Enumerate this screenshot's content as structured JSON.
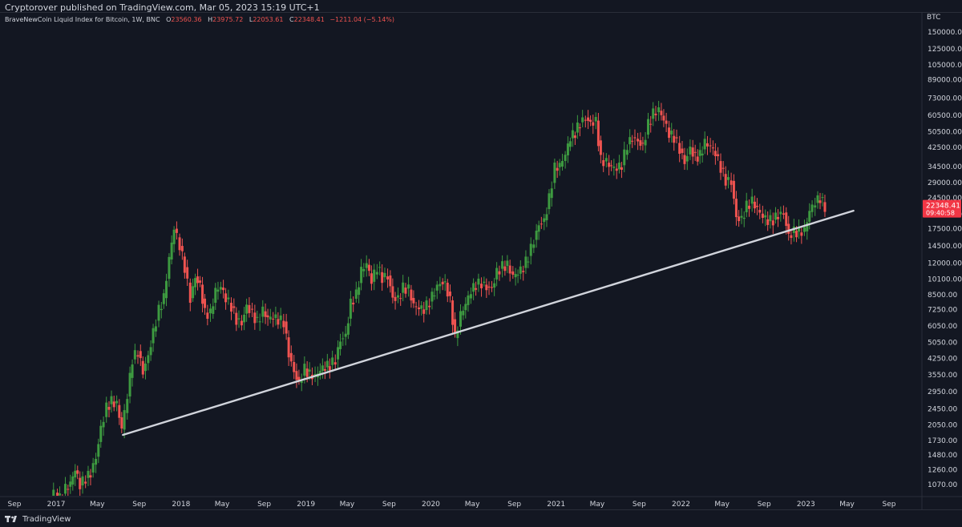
{
  "header": {
    "published": "Cryptorover published on TradingView.com, Mar 05, 2023 15:19 UTC+1"
  },
  "legend": {
    "symbol": "BraveNewCoin Liquid Index for Bitcoin, 1W, BNC",
    "open_label": "O",
    "open": "23560.36",
    "high_label": "H",
    "high": "23975.72",
    "low_label": "L",
    "low": "22053.61",
    "close_label": "C",
    "close": "22348.41",
    "change": "−1211.04 (−5.14%)"
  },
  "price_axis": {
    "currency": "BTC",
    "last_price": "22348.41",
    "countdown": "09:40:58"
  },
  "footer": {
    "brand": "TradingView"
  },
  "colors": {
    "background": "#131722",
    "up": "#26a69a",
    "up_candle": "#3d9a40",
    "down": "#ef5350",
    "trendline": "#d1d4dc",
    "price_tag": "#f23645"
  },
  "chart_data": {
    "type": "candlestick",
    "interval": "1W",
    "scale": "log",
    "ylim": [
      900,
      175000
    ],
    "y_ticks": [
      1070,
      1260,
      1480,
      1730,
      2050,
      2450,
      2950,
      3550,
      4250,
      5050,
      6050,
      7250,
      8500,
      10100,
      12000,
      14500,
      17500,
      20500,
      24500,
      29000,
      34500,
      42500,
      50500,
      60500,
      73000,
      89000,
      105000,
      125000,
      150000
    ],
    "x_ticks": [
      {
        "label": "Sep",
        "date": "2016-09-01"
      },
      {
        "label": "2017",
        "date": "2017-01-01"
      },
      {
        "label": "May",
        "date": "2017-05-01"
      },
      {
        "label": "Sep",
        "date": "2017-09-01"
      },
      {
        "label": "2018",
        "date": "2018-01-01"
      },
      {
        "label": "May",
        "date": "2018-05-01"
      },
      {
        "label": "Sep",
        "date": "2018-09-01"
      },
      {
        "label": "2019",
        "date": "2019-01-01"
      },
      {
        "label": "May",
        "date": "2019-05-01"
      },
      {
        "label": "Sep",
        "date": "2019-09-01"
      },
      {
        "label": "2020",
        "date": "2020-01-01"
      },
      {
        "label": "May",
        "date": "2020-05-01"
      },
      {
        "label": "Sep",
        "date": "2020-09-01"
      },
      {
        "label": "2021",
        "date": "2021-01-01"
      },
      {
        "label": "May",
        "date": "2021-05-01"
      },
      {
        "label": "Sep",
        "date": "2021-09-01"
      },
      {
        "label": "2022",
        "date": "2022-01-01"
      },
      {
        "label": "May",
        "date": "2022-05-01"
      },
      {
        "label": "Sep",
        "date": "2022-09-01"
      },
      {
        "label": "2023",
        "date": "2023-01-01"
      },
      {
        "label": "May",
        "date": "2023-05-01"
      },
      {
        "label": "Sep",
        "date": "2023-09-01"
      }
    ],
    "trendline": {
      "start": {
        "date": "2017-07-15",
        "price": 1840
      },
      "end": {
        "date": "2023-05-20",
        "price": 21300
      }
    },
    "series": [
      {
        "date": "2016-12-01",
        "close": 880
      },
      {
        "date": "2017-01-01",
        "close": 980
      },
      {
        "date": "2017-01-15",
        "close": 920
      },
      {
        "date": "2017-02-01",
        "close": 1020
      },
      {
        "date": "2017-02-15",
        "close": 1070
      },
      {
        "date": "2017-03-01",
        "close": 1250
      },
      {
        "date": "2017-03-15",
        "close": 1060
      },
      {
        "date": "2017-04-01",
        "close": 1150
      },
      {
        "date": "2017-04-15",
        "close": 1220
      },
      {
        "date": "2017-05-01",
        "close": 1450
      },
      {
        "date": "2017-05-15",
        "close": 2000
      },
      {
        "date": "2017-06-01",
        "close": 2500
      },
      {
        "date": "2017-06-15",
        "close": 2650
      },
      {
        "date": "2017-07-01",
        "close": 2550
      },
      {
        "date": "2017-07-15",
        "close": 1950
      },
      {
        "date": "2017-08-01",
        "close": 2800
      },
      {
        "date": "2017-08-15",
        "close": 4200
      },
      {
        "date": "2017-09-01",
        "close": 4600
      },
      {
        "date": "2017-09-15",
        "close": 3700
      },
      {
        "date": "2017-10-01",
        "close": 4400
      },
      {
        "date": "2017-10-15",
        "close": 5700
      },
      {
        "date": "2017-11-01",
        "close": 7200
      },
      {
        "date": "2017-11-15",
        "close": 8200
      },
      {
        "date": "2017-12-01",
        "close": 12500
      },
      {
        "date": "2017-12-15",
        "close": 17500
      },
      {
        "date": "2018-01-01",
        "close": 14500
      },
      {
        "date": "2018-01-15",
        "close": 11500
      },
      {
        "date": "2018-02-01",
        "close": 8200
      },
      {
        "date": "2018-02-15",
        "close": 10400
      },
      {
        "date": "2018-03-01",
        "close": 9500
      },
      {
        "date": "2018-03-15",
        "close": 7000
      },
      {
        "date": "2018-04-01",
        "close": 6900
      },
      {
        "date": "2018-04-15",
        "close": 8800
      },
      {
        "date": "2018-05-01",
        "close": 9200
      },
      {
        "date": "2018-05-15",
        "close": 8100
      },
      {
        "date": "2018-06-01",
        "close": 7500
      },
      {
        "date": "2018-06-15",
        "close": 6500
      },
      {
        "date": "2018-07-01",
        "close": 6300
      },
      {
        "date": "2018-07-15",
        "close": 7600
      },
      {
        "date": "2018-08-01",
        "close": 7000
      },
      {
        "date": "2018-08-15",
        "close": 6300
      },
      {
        "date": "2018-09-01",
        "close": 7100
      },
      {
        "date": "2018-09-15",
        "close": 6500
      },
      {
        "date": "2018-10-01",
        "close": 6600
      },
      {
        "date": "2018-10-15",
        "close": 6450
      },
      {
        "date": "2018-11-01",
        "close": 6350
      },
      {
        "date": "2018-11-15",
        "close": 4500
      },
      {
        "date": "2018-12-01",
        "close": 3700
      },
      {
        "date": "2018-12-15",
        "close": 3250
      },
      {
        "date": "2019-01-01",
        "close": 3800
      },
      {
        "date": "2019-01-15",
        "close": 3550
      },
      {
        "date": "2019-02-01",
        "close": 3450
      },
      {
        "date": "2019-02-15",
        "close": 3700
      },
      {
        "date": "2019-03-01",
        "close": 3850
      },
      {
        "date": "2019-03-15",
        "close": 3950
      },
      {
        "date": "2019-04-01",
        "close": 4200
      },
      {
        "date": "2019-04-15",
        "close": 5250
      },
      {
        "date": "2019-05-01",
        "close": 5500
      },
      {
        "date": "2019-05-15",
        "close": 7800
      },
      {
        "date": "2019-06-01",
        "close": 8500
      },
      {
        "date": "2019-06-15",
        "close": 11000
      },
      {
        "date": "2019-07-01",
        "close": 11800
      },
      {
        "date": "2019-07-15",
        "close": 9800
      },
      {
        "date": "2019-08-01",
        "close": 11500
      },
      {
        "date": "2019-08-15",
        "close": 10300
      },
      {
        "date": "2019-09-01",
        "close": 10500
      },
      {
        "date": "2019-09-15",
        "close": 8300
      },
      {
        "date": "2019-10-01",
        "close": 8200
      },
      {
        "date": "2019-10-15",
        "close": 9200
      },
      {
        "date": "2019-11-01",
        "close": 9000
      },
      {
        "date": "2019-11-15",
        "close": 7500
      },
      {
        "date": "2019-12-01",
        "close": 7300
      },
      {
        "date": "2019-12-15",
        "close": 7200
      },
      {
        "date": "2020-01-01",
        "close": 7900
      },
      {
        "date": "2020-01-15",
        "close": 8900
      },
      {
        "date": "2020-02-01",
        "close": 9800
      },
      {
        "date": "2020-02-15",
        "close": 9700
      },
      {
        "date": "2020-03-01",
        "close": 8000
      },
      {
        "date": "2020-03-15",
        "close": 5300
      },
      {
        "date": "2020-04-01",
        "close": 6800
      },
      {
        "date": "2020-04-15",
        "close": 7600
      },
      {
        "date": "2020-05-01",
        "close": 8800
      },
      {
        "date": "2020-05-15",
        "close": 9500
      },
      {
        "date": "2020-06-01",
        "close": 9700
      },
      {
        "date": "2020-06-15",
        "close": 9300
      },
      {
        "date": "2020-07-01",
        "close": 9200
      },
      {
        "date": "2020-07-15",
        "close": 11000
      },
      {
        "date": "2020-08-01",
        "close": 11600
      },
      {
        "date": "2020-08-15",
        "close": 11700
      },
      {
        "date": "2020-09-01",
        "close": 10300
      },
      {
        "date": "2020-09-15",
        "close": 10700
      },
      {
        "date": "2020-10-01",
        "close": 11400
      },
      {
        "date": "2020-10-15",
        "close": 13000
      },
      {
        "date": "2020-11-01",
        "close": 15500
      },
      {
        "date": "2020-11-15",
        "close": 18500
      },
      {
        "date": "2020-12-01",
        "close": 19200
      },
      {
        "date": "2020-12-15",
        "close": 24500
      },
      {
        "date": "2021-01-01",
        "close": 34000
      },
      {
        "date": "2021-01-15",
        "close": 34500
      },
      {
        "date": "2021-02-01",
        "close": 39000
      },
      {
        "date": "2021-02-15",
        "close": 47000
      },
      {
        "date": "2021-03-01",
        "close": 50000
      },
      {
        "date": "2021-03-15",
        "close": 56000
      },
      {
        "date": "2021-04-01",
        "close": 59000
      },
      {
        "date": "2021-04-15",
        "close": 56000
      },
      {
        "date": "2021-05-01",
        "close": 57000
      },
      {
        "date": "2021-05-15",
        "close": 37000
      },
      {
        "date": "2021-06-01",
        "close": 36000
      },
      {
        "date": "2021-06-15",
        "close": 34000
      },
      {
        "date": "2021-07-01",
        "close": 33500
      },
      {
        "date": "2021-07-15",
        "close": 35000
      },
      {
        "date": "2021-08-01",
        "close": 44000
      },
      {
        "date": "2021-08-15",
        "close": 47500
      },
      {
        "date": "2021-09-01",
        "close": 46000
      },
      {
        "date": "2021-09-15",
        "close": 43500
      },
      {
        "date": "2021-10-01",
        "close": 55000
      },
      {
        "date": "2021-10-15",
        "close": 61500
      },
      {
        "date": "2021-11-01",
        "close": 63500
      },
      {
        "date": "2021-11-15",
        "close": 57000
      },
      {
        "date": "2021-12-01",
        "close": 49000
      },
      {
        "date": "2021-12-15",
        "close": 47500
      },
      {
        "date": "2022-01-01",
        "close": 42000
      },
      {
        "date": "2022-01-15",
        "close": 36500
      },
      {
        "date": "2022-02-01",
        "close": 42500
      },
      {
        "date": "2022-02-15",
        "close": 38500
      },
      {
        "date": "2022-03-01",
        "close": 39000
      },
      {
        "date": "2022-03-15",
        "close": 44500
      },
      {
        "date": "2022-04-01",
        "close": 42500
      },
      {
        "date": "2022-04-15",
        "close": 39500
      },
      {
        "date": "2022-05-01",
        "close": 34000
      },
      {
        "date": "2022-05-15",
        "close": 29800
      },
      {
        "date": "2022-06-01",
        "close": 29500
      },
      {
        "date": "2022-06-15",
        "close": 20000
      },
      {
        "date": "2022-07-01",
        "close": 19500
      },
      {
        "date": "2022-07-15",
        "close": 22500
      },
      {
        "date": "2022-08-01",
        "close": 23500
      },
      {
        "date": "2022-08-15",
        "close": 21500
      },
      {
        "date": "2022-09-01",
        "close": 19800
      },
      {
        "date": "2022-09-15",
        "close": 19000
      },
      {
        "date": "2022-10-01",
        "close": 19300
      },
      {
        "date": "2022-10-15",
        "close": 20500
      },
      {
        "date": "2022-11-01",
        "close": 20900
      },
      {
        "date": "2022-11-15",
        "close": 16300
      },
      {
        "date": "2022-12-01",
        "close": 17100
      },
      {
        "date": "2022-12-15",
        "close": 16800
      },
      {
        "date": "2023-01-01",
        "close": 17000
      },
      {
        "date": "2023-01-15",
        "close": 21000
      },
      {
        "date": "2023-02-01",
        "close": 23200
      },
      {
        "date": "2023-02-15",
        "close": 24500
      },
      {
        "date": "2023-03-01",
        "close": 22348
      }
    ]
  }
}
